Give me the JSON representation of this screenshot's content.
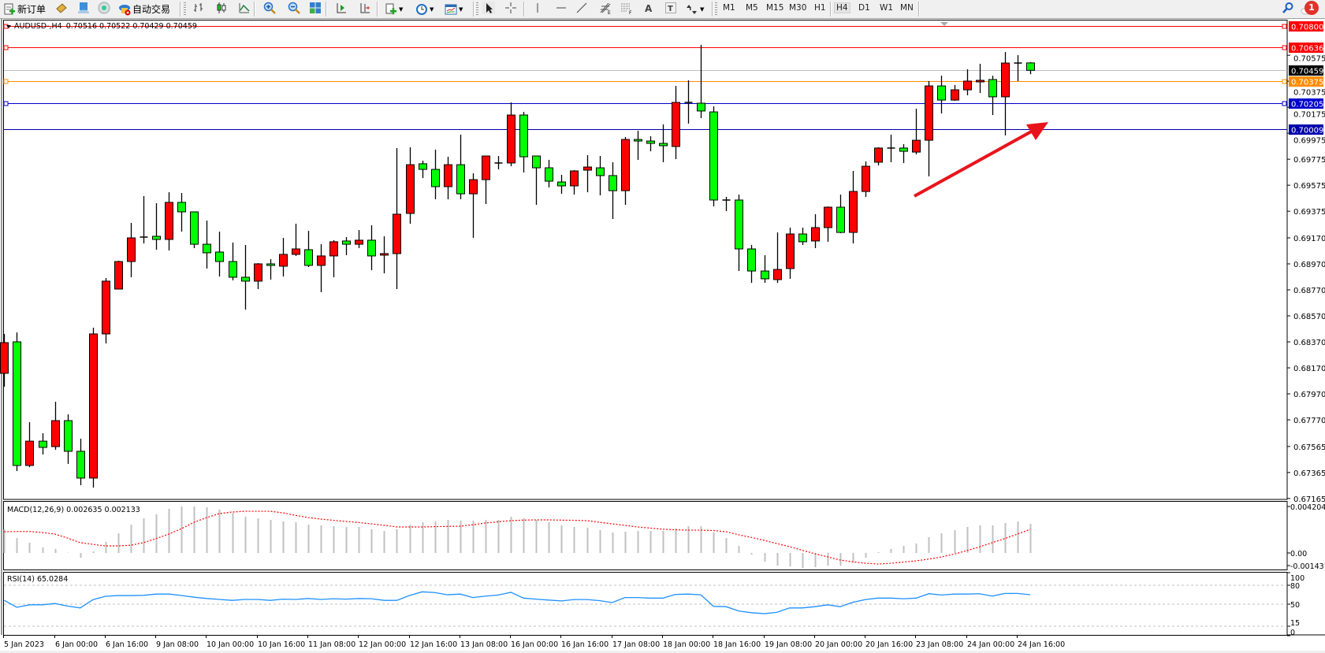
{
  "toolbar": {
    "new_order_label": "新订单",
    "auto_trading_label": "自动交易",
    "icons": [
      "new-order-icon",
      "market-watch-icon",
      "data-window-icon",
      "navigator-icon",
      "auto-trading-icon",
      "bar-chart-icon",
      "candlestick-chart-icon",
      "line-chart-icon",
      "zoom-in-icon",
      "zoom-out-icon",
      "tile-windows-icon",
      "auto-scroll-icon",
      "chart-shift-icon",
      "new-chart-icon",
      "periods-clock-icon",
      "templates-icon",
      "cursor-icon",
      "crosshair-icon",
      "vertical-line-icon",
      "horizontal-line-icon",
      "trendline-icon",
      "fibonacci-expansion-icon",
      "fibonacci-fan-icon",
      "text-icon",
      "text-label-icon",
      "arrows-icon",
      "search-icon",
      "notifications-icon"
    ],
    "timeframes": [
      "M1",
      "M5",
      "M15",
      "M30",
      "H1",
      "H4",
      "D1",
      "W1",
      "MN"
    ],
    "selected_timeframe": "H4",
    "notification_count": "1"
  },
  "chart_info": {
    "symbol": "AUDUSD-,H4",
    "ohlc": "0.70516 0.70522 0.70429 0.70459"
  },
  "colors": {
    "bull": "#ff0000",
    "bear": "#00ff00",
    "macd_hist": "#c0c0c0",
    "macd_signal": "#ff0000",
    "rsi": "#1e90ff",
    "arrow": "#e8141c"
  },
  "chart_data": {
    "type": "candlestick",
    "symbol": "AUDUSD-",
    "timeframe": "H4",
    "up_color": "red",
    "down_color": "green",
    "price_ticks": [
      "0.70575",
      "0.70375",
      "0.70175",
      "0.69975",
      "0.69775",
      "0.69575",
      "0.69375",
      "0.69170",
      "0.68970",
      "0.68770",
      "0.68570",
      "0.68370",
      "0.68170",
      "0.67970",
      "0.67770",
      "0.67565",
      "0.67365",
      "0.67165"
    ],
    "time_labels": [
      "5 Jan 2023",
      "6 Jan 00:00",
      "6 Jan 16:00",
      "9 Jan 08:00",
      "10 Jan 00:00",
      "10 Jan 16:00",
      "11 Jan 08:00",
      "12 Jan 00:00",
      "12 Jan 16:00",
      "13 Jan 08:00",
      "16 Jan 00:00",
      "16 Jan 16:00",
      "17 Jan 08:00",
      "18 Jan 00:00",
      "18 Jan 16:00",
      "19 Jan 08:00",
      "20 Jan 00:00",
      "20 Jan 16:00",
      "23 Jan 08:00",
      "24 Jan 00:00",
      "24 Jan 16:00"
    ],
    "horizontal_lines": [
      {
        "price": 0.708,
        "label": "0.70800",
        "color": "#ff0000",
        "marker": true
      },
      {
        "price": 0.70636,
        "label": "0.70636",
        "color": "#ff0000",
        "marker": true
      },
      {
        "price": 0.70459,
        "label": "0.70459",
        "color": "#c0c0c0",
        "label_bg": "#000000",
        "marker": false
      },
      {
        "price": 0.70375,
        "label": "0.70375",
        "color": "#ff8c00",
        "marker": true
      },
      {
        "price": 0.70205,
        "label": "0.70205",
        "color": "#0000cc",
        "marker": true
      },
      {
        "price": 0.70009,
        "label": "0.70009",
        "color": "#0000aa",
        "marker": false
      }
    ],
    "ohlc": [
      [
        0.68128,
        0.68431,
        0.68025,
        0.68364
      ],
      [
        0.6837,
        0.68443,
        0.67376,
        0.67419
      ],
      [
        0.67419,
        0.67752,
        0.67406,
        0.67606
      ],
      [
        0.67606,
        0.67667,
        0.67503,
        0.67558
      ],
      [
        0.67564,
        0.67909,
        0.6754,
        0.67764
      ],
      [
        0.67764,
        0.67812,
        0.67431,
        0.67528
      ],
      [
        0.67528,
        0.67625,
        0.67267,
        0.67322
      ],
      [
        0.67322,
        0.68479,
        0.67249,
        0.68431
      ],
      [
        0.68431,
        0.68861,
        0.68358,
        0.68837
      ],
      [
        0.68776,
        0.68994,
        0.68776,
        0.68988
      ],
      [
        0.68988,
        0.69285,
        0.68867,
        0.6917
      ],
      [
        0.6917,
        0.69491,
        0.69127,
        0.69176
      ],
      [
        0.69182,
        0.69437,
        0.69079,
        0.69158
      ],
      [
        0.69158,
        0.69521,
        0.69073,
        0.69443
      ],
      [
        0.69443,
        0.69515,
        0.69218,
        0.6937
      ],
      [
        0.6937,
        0.6937,
        0.69091,
        0.69121
      ],
      [
        0.69121,
        0.69303,
        0.68934,
        0.69055
      ],
      [
        0.69061,
        0.69218,
        0.68873,
        0.68988
      ],
      [
        0.68988,
        0.69134,
        0.68843,
        0.68867
      ],
      [
        0.68867,
        0.69115,
        0.68618,
        0.68837
      ],
      [
        0.68837,
        0.68976,
        0.68776,
        0.6897
      ],
      [
        0.6897,
        0.69006,
        0.68849,
        0.68958
      ],
      [
        0.68952,
        0.6917,
        0.68873,
        0.69043
      ],
      [
        0.69043,
        0.69279,
        0.69031,
        0.69085
      ],
      [
        0.69079,
        0.69224,
        0.68946,
        0.68958
      ],
      [
        0.68958,
        0.69121,
        0.68752,
        0.69031
      ],
      [
        0.69031,
        0.69152,
        0.68867,
        0.6914
      ],
      [
        0.69146,
        0.69176,
        0.69037,
        0.69121
      ],
      [
        0.69121,
        0.6923,
        0.69091,
        0.69152
      ],
      [
        0.69152,
        0.69267,
        0.68921,
        0.69031
      ],
      [
        0.69037,
        0.69182,
        0.68897,
        0.69049
      ],
      [
        0.69049,
        0.69861,
        0.68776,
        0.69352
      ],
      [
        0.69358,
        0.69867,
        0.69279,
        0.69733
      ],
      [
        0.6974,
        0.69764,
        0.6963,
        0.69697
      ],
      [
        0.69697,
        0.69849,
        0.69467,
        0.69564
      ],
      [
        0.69564,
        0.69794,
        0.69467,
        0.69733
      ],
      [
        0.69733,
        0.69964,
        0.69467,
        0.69509
      ],
      [
        0.69509,
        0.69667,
        0.6917,
        0.69618
      ],
      [
        0.69618,
        0.698,
        0.6943,
        0.698
      ],
      [
        0.69746,
        0.698,
        0.69697,
        0.69746
      ],
      [
        0.69746,
        0.70212,
        0.69721,
        0.70115
      ],
      [
        0.70115,
        0.70139,
        0.69673,
        0.69794
      ],
      [
        0.698,
        0.698,
        0.69424,
        0.69709
      ],
      [
        0.69709,
        0.6977,
        0.69558,
        0.69606
      ],
      [
        0.696,
        0.69655,
        0.69509,
        0.6957
      ],
      [
        0.6957,
        0.69691,
        0.69503,
        0.69685
      ],
      [
        0.69691,
        0.69806,
        0.69521,
        0.69715
      ],
      [
        0.69709,
        0.698,
        0.69497,
        0.69649
      ],
      [
        0.69649,
        0.69752,
        0.69315,
        0.69533
      ],
      [
        0.69533,
        0.69946,
        0.69424,
        0.69927
      ],
      [
        0.69927,
        0.69994,
        0.6977,
        0.69915
      ],
      [
        0.69915,
        0.69952,
        0.69836,
        0.69897
      ],
      [
        0.69897,
        0.70043,
        0.69752,
        0.69879
      ],
      [
        0.69873,
        0.70339,
        0.69776,
        0.70212
      ],
      [
        0.70212,
        0.70382,
        0.70049,
        0.70212
      ],
      [
        0.70206,
        0.70655,
        0.70091,
        0.70146
      ],
      [
        0.70139,
        0.70182,
        0.69412,
        0.69461
      ],
      [
        0.69461,
        0.69485,
        0.69376,
        0.69461
      ],
      [
        0.69461,
        0.69503,
        0.68915,
        0.69085
      ],
      [
        0.69085,
        0.69115,
        0.68824,
        0.68915
      ],
      [
        0.68915,
        0.69037,
        0.68824,
        0.68855
      ],
      [
        0.68849,
        0.69212,
        0.68824,
        0.68927
      ],
      [
        0.68934,
        0.69249,
        0.68855,
        0.692
      ],
      [
        0.692,
        0.69249,
        0.69115,
        0.6914
      ],
      [
        0.69146,
        0.69352,
        0.69091,
        0.69249
      ],
      [
        0.69249,
        0.69412,
        0.6914,
        0.69406
      ],
      [
        0.69406,
        0.69503,
        0.69206,
        0.69212
      ],
      [
        0.69212,
        0.69685,
        0.69127,
        0.69527
      ],
      [
        0.69527,
        0.69758,
        0.69485,
        0.69721
      ],
      [
        0.69752,
        0.69867,
        0.69727,
        0.69861
      ],
      [
        0.69861,
        0.69964,
        0.69752,
        0.69861
      ],
      [
        0.69861,
        0.69891,
        0.69746,
        0.69836
      ],
      [
        0.6983,
        0.70164,
        0.69812,
        0.69921
      ],
      [
        0.69921,
        0.70376,
        0.69643,
        0.70339
      ],
      [
        0.70339,
        0.70418,
        0.70127,
        0.7023
      ],
      [
        0.7023,
        0.70346,
        0.70224,
        0.70309
      ],
      [
        0.70309,
        0.70467,
        0.70267,
        0.70376
      ],
      [
        0.7037,
        0.70509,
        0.70285,
        0.70382
      ],
      [
        0.70388,
        0.70418,
        0.70115,
        0.70255
      ],
      [
        0.70255,
        0.706,
        0.69958,
        0.70515
      ],
      [
        0.70515,
        0.70576,
        0.70376,
        0.70515
      ],
      [
        0.70516,
        0.70522,
        0.70429,
        0.70459
      ]
    ],
    "macd": {
      "label": "MACD(12,26,9) 0.002635 0.002133",
      "scale_labels": [
        "0.004204",
        "0.00",
        "-0.001431"
      ],
      "range": [
        -0.001431,
        0.004204
      ],
      "histogram": [
        0.00214,
        0.00135,
        0.00093,
        0.0005,
        0.00036,
        3e-05,
        -0.00043,
        0.00014,
        0.001,
        0.00178,
        0.00256,
        0.00313,
        0.00349,
        0.00399,
        0.0042,
        0.0042,
        0.00413,
        0.00392,
        0.00363,
        0.00328,
        0.00313,
        0.00299,
        0.00285,
        0.00278,
        0.00256,
        0.00249,
        0.00242,
        0.00235,
        0.00235,
        0.00214,
        0.00199,
        0.00214,
        0.00256,
        0.00278,
        0.00285,
        0.00299,
        0.00292,
        0.00292,
        0.00299,
        0.00299,
        0.00328,
        0.00313,
        0.00299,
        0.00278,
        0.00249,
        0.00235,
        0.00228,
        0.00206,
        0.00185,
        0.00192,
        0.00199,
        0.00199,
        0.00199,
        0.00221,
        0.00242,
        0.00242,
        0.00185,
        0.00135,
        0.00064,
        -0.00014,
        -0.00078,
        -0.00114,
        -0.00121,
        -0.00135,
        -0.00128,
        -0.00114,
        -0.00114,
        -0.00085,
        -0.00043,
        7e-05,
        0.00036,
        0.00064,
        0.00085,
        0.00142,
        0.00178,
        0.00206,
        0.00235,
        0.00249,
        0.00249,
        0.00271,
        0.00285,
        0.002635
      ],
      "signal": [
        0.00192,
        0.00194,
        0.00194,
        0.00185,
        0.00171,
        0.00135,
        0.00093,
        0.00078,
        0.00064,
        0.00064,
        0.0007,
        0.00093,
        0.0013,
        0.00171,
        0.0022,
        0.00278,
        0.0032,
        0.00356,
        0.0037,
        0.00377,
        0.00377,
        0.00377,
        0.00363,
        0.0034,
        0.0032,
        0.00306,
        0.00295,
        0.00285,
        0.00275,
        0.00263,
        0.0025,
        0.00235,
        0.00235,
        0.00235,
        0.00238,
        0.0024,
        0.00242,
        0.00255,
        0.00271,
        0.00282,
        0.00292,
        0.00297,
        0.00299,
        0.00299,
        0.00297,
        0.00295,
        0.00292,
        0.00278,
        0.00263,
        0.0025,
        0.00235,
        0.00225,
        0.00214,
        0.0021,
        0.00206,
        0.00206,
        0.00203,
        0.00192,
        0.00164,
        0.0014,
        0.00114,
        0.00085,
        0.00057,
        0.00025,
        -7e-05,
        -0.00035,
        -0.00064,
        -0.0008,
        -0.00093,
        -0.001,
        -0.00093,
        -0.00082,
        -0.00071,
        -0.00055,
        -0.00036,
        -0.0001,
        0.00021,
        0.00055,
        0.00093,
        0.0013,
        0.00171,
        0.002133
      ]
    },
    "rsi": {
      "label": "RSI(14) 65.0284",
      "levels": [
        80,
        50,
        15
      ],
      "scale_labels": [
        "100",
        "80",
        "50",
        "15",
        "0"
      ],
      "range": [
        0,
        100
      ],
      "values": [
        56,
        45,
        49,
        49,
        51,
        47,
        44,
        57,
        62.5,
        63.7,
        63.7,
        64,
        66,
        66,
        63.7,
        61,
        59,
        57.5,
        56,
        57.5,
        57.5,
        56,
        58,
        57.5,
        59,
        57.5,
        58.6,
        58,
        59,
        58.6,
        56,
        56,
        63.7,
        69.6,
        68.4,
        64.9,
        66,
        60.5,
        62.8,
        64.5,
        68.8,
        59.6,
        58,
        56.5,
        55.2,
        57.3,
        57.3,
        55.6,
        52.5,
        60.5,
        60.5,
        59.6,
        59.6,
        65.4,
        66,
        64.9,
        46.5,
        46,
        39,
        36.5,
        34.9,
        37,
        44,
        44,
        46,
        49,
        46,
        53,
        57.3,
        59.6,
        59.6,
        58.6,
        59.6,
        66.6,
        64.5,
        66,
        66,
        66.6,
        62.8,
        67,
        67,
        65.0284
      ]
    }
  }
}
